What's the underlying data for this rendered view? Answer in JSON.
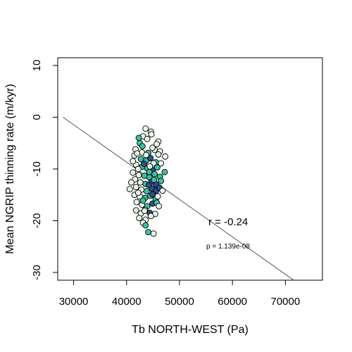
{
  "chart_data": {
    "type": "scatter",
    "xlabel": "Tb NORTH-WEST (Pa)",
    "ylabel": "Mean NGRIP thinning rate (m/kyr)",
    "xlim": [
      27000,
      77000
    ],
    "ylim": [
      -31.5,
      11.5
    ],
    "xticks": [
      30000,
      40000,
      50000,
      60000,
      70000
    ],
    "yticks": [
      -30,
      -20,
      -10,
      0,
      10
    ],
    "grid": false,
    "legend": "none",
    "regression_line": {
      "x": [
        28000,
        72000
      ],
      "y": [
        0.0,
        -31.8
      ]
    },
    "annotations": {
      "r_text": "r = -0.24",
      "p_text": "p = 1.139e-08"
    },
    "colors": {
      "light": "#e8f6e9",
      "mid": "#3dbfa0",
      "dark": "#2d4f8e",
      "stroke": "#000000",
      "line": "#555555"
    },
    "points": [
      {
        "x": 43600,
        "y": -2.2,
        "c": "light"
      },
      {
        "x": 44600,
        "y": -2.8,
        "c": "light"
      },
      {
        "x": 44700,
        "y": -3.3,
        "c": "light"
      },
      {
        "x": 43100,
        "y": -3.7,
        "c": "light"
      },
      {
        "x": 42300,
        "y": -4.0,
        "c": "mid"
      },
      {
        "x": 46000,
        "y": -4.7,
        "c": "light"
      },
      {
        "x": 45700,
        "y": -5.2,
        "c": "light"
      },
      {
        "x": 42500,
        "y": -5.0,
        "c": "mid"
      },
      {
        "x": 43900,
        "y": -4.2,
        "c": "light"
      },
      {
        "x": 41700,
        "y": -6.2,
        "c": "light"
      },
      {
        "x": 42900,
        "y": -6.8,
        "c": "light"
      },
      {
        "x": 44100,
        "y": -6.9,
        "c": "mid"
      },
      {
        "x": 45300,
        "y": -6.3,
        "c": "light"
      },
      {
        "x": 46300,
        "y": -6.6,
        "c": "light"
      },
      {
        "x": 47300,
        "y": -7.6,
        "c": "light"
      },
      {
        "x": 41500,
        "y": -7.4,
        "c": "light"
      },
      {
        "x": 42700,
        "y": -8.1,
        "c": "mid"
      },
      {
        "x": 43700,
        "y": -8.4,
        "c": "mid"
      },
      {
        "x": 44500,
        "y": -7.9,
        "c": "dark"
      },
      {
        "x": 45500,
        "y": -8.7,
        "c": "mid"
      },
      {
        "x": 46500,
        "y": -8.9,
        "c": "light"
      },
      {
        "x": 41800,
        "y": -9.2,
        "c": "light"
      },
      {
        "x": 42900,
        "y": -9.6,
        "c": "mid"
      },
      {
        "x": 43900,
        "y": -9.9,
        "c": "mid"
      },
      {
        "x": 44900,
        "y": -10.2,
        "c": "dark"
      },
      {
        "x": 45800,
        "y": -9.7,
        "c": "mid"
      },
      {
        "x": 41200,
        "y": -10.7,
        "c": "light"
      },
      {
        "x": 42300,
        "y": -11.2,
        "c": "light"
      },
      {
        "x": 43400,
        "y": -11.3,
        "c": "mid"
      },
      {
        "x": 44300,
        "y": -11.6,
        "c": "mid"
      },
      {
        "x": 45300,
        "y": -11.0,
        "c": "mid"
      },
      {
        "x": 46300,
        "y": -11.5,
        "c": "mid"
      },
      {
        "x": 47200,
        "y": -10.6,
        "c": "mid"
      },
      {
        "x": 41600,
        "y": -12.0,
        "c": "light"
      },
      {
        "x": 42600,
        "y": -12.6,
        "c": "light"
      },
      {
        "x": 43600,
        "y": -12.9,
        "c": "mid"
      },
      {
        "x": 44700,
        "y": -12.5,
        "c": "dark"
      },
      {
        "x": 45600,
        "y": -13.0,
        "c": "dark"
      },
      {
        "x": 46500,
        "y": -12.3,
        "c": "mid"
      },
      {
        "x": 40600,
        "y": -13.9,
        "c": "light"
      },
      {
        "x": 41800,
        "y": -13.5,
        "c": "light"
      },
      {
        "x": 42800,
        "y": -14.0,
        "c": "light"
      },
      {
        "x": 43800,
        "y": -14.3,
        "c": "mid"
      },
      {
        "x": 44800,
        "y": -13.8,
        "c": "dark"
      },
      {
        "x": 45600,
        "y": -14.2,
        "c": "dark"
      },
      {
        "x": 46200,
        "y": -13.6,
        "c": "dark"
      },
      {
        "x": 41500,
        "y": -15.0,
        "c": "light"
      },
      {
        "x": 42500,
        "y": -15.3,
        "c": "light"
      },
      {
        "x": 43500,
        "y": -15.6,
        "c": "mid"
      },
      {
        "x": 44500,
        "y": -15.2,
        "c": "mid"
      },
      {
        "x": 45500,
        "y": -15.8,
        "c": "mid"
      },
      {
        "x": 41900,
        "y": -16.4,
        "c": "light"
      },
      {
        "x": 42900,
        "y": -16.9,
        "c": "light"
      },
      {
        "x": 43900,
        "y": -17.2,
        "c": "mid"
      },
      {
        "x": 44900,
        "y": -16.7,
        "c": "dark"
      },
      {
        "x": 45700,
        "y": -16.5,
        "c": "mid"
      },
      {
        "x": 41800,
        "y": -18.0,
        "c": "light"
      },
      {
        "x": 42700,
        "y": -18.6,
        "c": "light"
      },
      {
        "x": 43500,
        "y": -17.9,
        "c": "light"
      },
      {
        "x": 44400,
        "y": -18.5,
        "c": "dark"
      },
      {
        "x": 45400,
        "y": -18.7,
        "c": "light"
      },
      {
        "x": 42400,
        "y": -19.5,
        "c": "light"
      },
      {
        "x": 43600,
        "y": -19.8,
        "c": "light"
      },
      {
        "x": 44600,
        "y": -19.1,
        "c": "light"
      },
      {
        "x": 43100,
        "y": -20.4,
        "c": "light"
      },
      {
        "x": 43600,
        "y": -20.9,
        "c": "mid"
      },
      {
        "x": 44100,
        "y": -22.2,
        "c": "mid"
      },
      {
        "x": 45100,
        "y": -22.5,
        "c": "light"
      },
      {
        "x": 43000,
        "y": -5.6,
        "c": "mid"
      },
      {
        "x": 44900,
        "y": -5.9,
        "c": "light"
      },
      {
        "x": 42000,
        "y": -7.0,
        "c": "light"
      },
      {
        "x": 46000,
        "y": -7.2,
        "c": "light"
      },
      {
        "x": 43300,
        "y": -9.0,
        "c": "dark"
      },
      {
        "x": 45100,
        "y": -8.9,
        "c": "light"
      },
      {
        "x": 40900,
        "y": -12.6,
        "c": "light"
      },
      {
        "x": 46800,
        "y": -14.2,
        "c": "light"
      },
      {
        "x": 44200,
        "y": -13.1,
        "c": "dark"
      },
      {
        "x": 43100,
        "y": -16.1,
        "c": "mid"
      },
      {
        "x": 46100,
        "y": -17.2,
        "c": "light"
      },
      {
        "x": 44300,
        "y": -10.6,
        "c": "mid"
      },
      {
        "x": 42200,
        "y": -10.0,
        "c": "light"
      },
      {
        "x": 45200,
        "y": -12.1,
        "c": "mid"
      },
      {
        "x": 41200,
        "y": -8.5,
        "c": "light"
      },
      {
        "x": 43700,
        "y": -7.3,
        "c": "light"
      },
      {
        "x": 44400,
        "y": -9.5,
        "c": "light"
      },
      {
        "x": 42200,
        "y": -14.6,
        "c": "light"
      },
      {
        "x": 45900,
        "y": -15.3,
        "c": "light"
      },
      {
        "x": 43400,
        "y": -18.1,
        "c": "light"
      },
      {
        "x": 44900,
        "y": -14.9,
        "c": "dark"
      }
    ]
  }
}
